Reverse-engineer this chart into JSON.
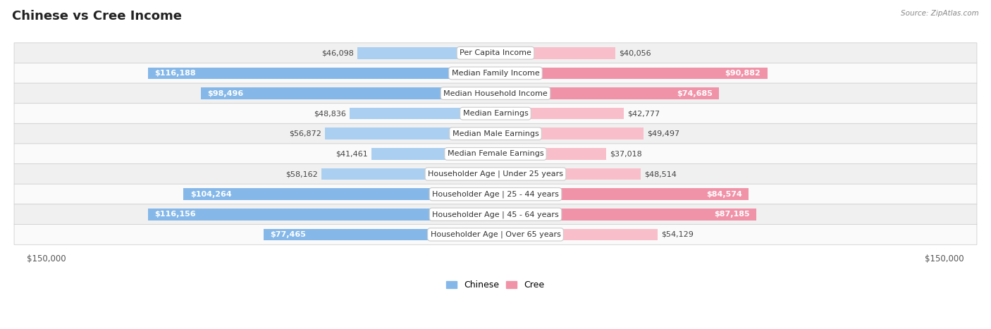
{
  "title": "Chinese vs Cree Income",
  "source": "Source: ZipAtlas.com",
  "categories": [
    "Per Capita Income",
    "Median Family Income",
    "Median Household Income",
    "Median Earnings",
    "Median Male Earnings",
    "Median Female Earnings",
    "Householder Age | Under 25 years",
    "Householder Age | 25 - 44 years",
    "Householder Age | 45 - 64 years",
    "Householder Age | Over 65 years"
  ],
  "chinese_values": [
    46098,
    116188,
    98496,
    48836,
    56872,
    41461,
    58162,
    104264,
    116156,
    77465
  ],
  "cree_values": [
    40056,
    90882,
    74685,
    42777,
    49497,
    37018,
    48514,
    84574,
    87185,
    54129
  ],
  "chinese_labels": [
    "$46,098",
    "$116,188",
    "$98,496",
    "$48,836",
    "$56,872",
    "$41,461",
    "$58,162",
    "$104,264",
    "$116,156",
    "$77,465"
  ],
  "cree_labels": [
    "$40,056",
    "$90,882",
    "$74,685",
    "$42,777",
    "$49,497",
    "$37,018",
    "$48,514",
    "$84,574",
    "$87,185",
    "$54,129"
  ],
  "max_value": 150000,
  "chinese_color": "#85b8e8",
  "cree_color": "#f093a8",
  "chinese_color_light": "#aacff0",
  "cree_color_light": "#f8bfca",
  "row_bg_odd": "#f0f0f0",
  "row_bg_even": "#fafafa",
  "bar_height": 0.58,
  "title_fontsize": 13,
  "label_fontsize": 8,
  "category_fontsize": 8,
  "legend_fontsize": 9,
  "axis_label_fontsize": 8.5,
  "inside_label_threshold": 60000
}
